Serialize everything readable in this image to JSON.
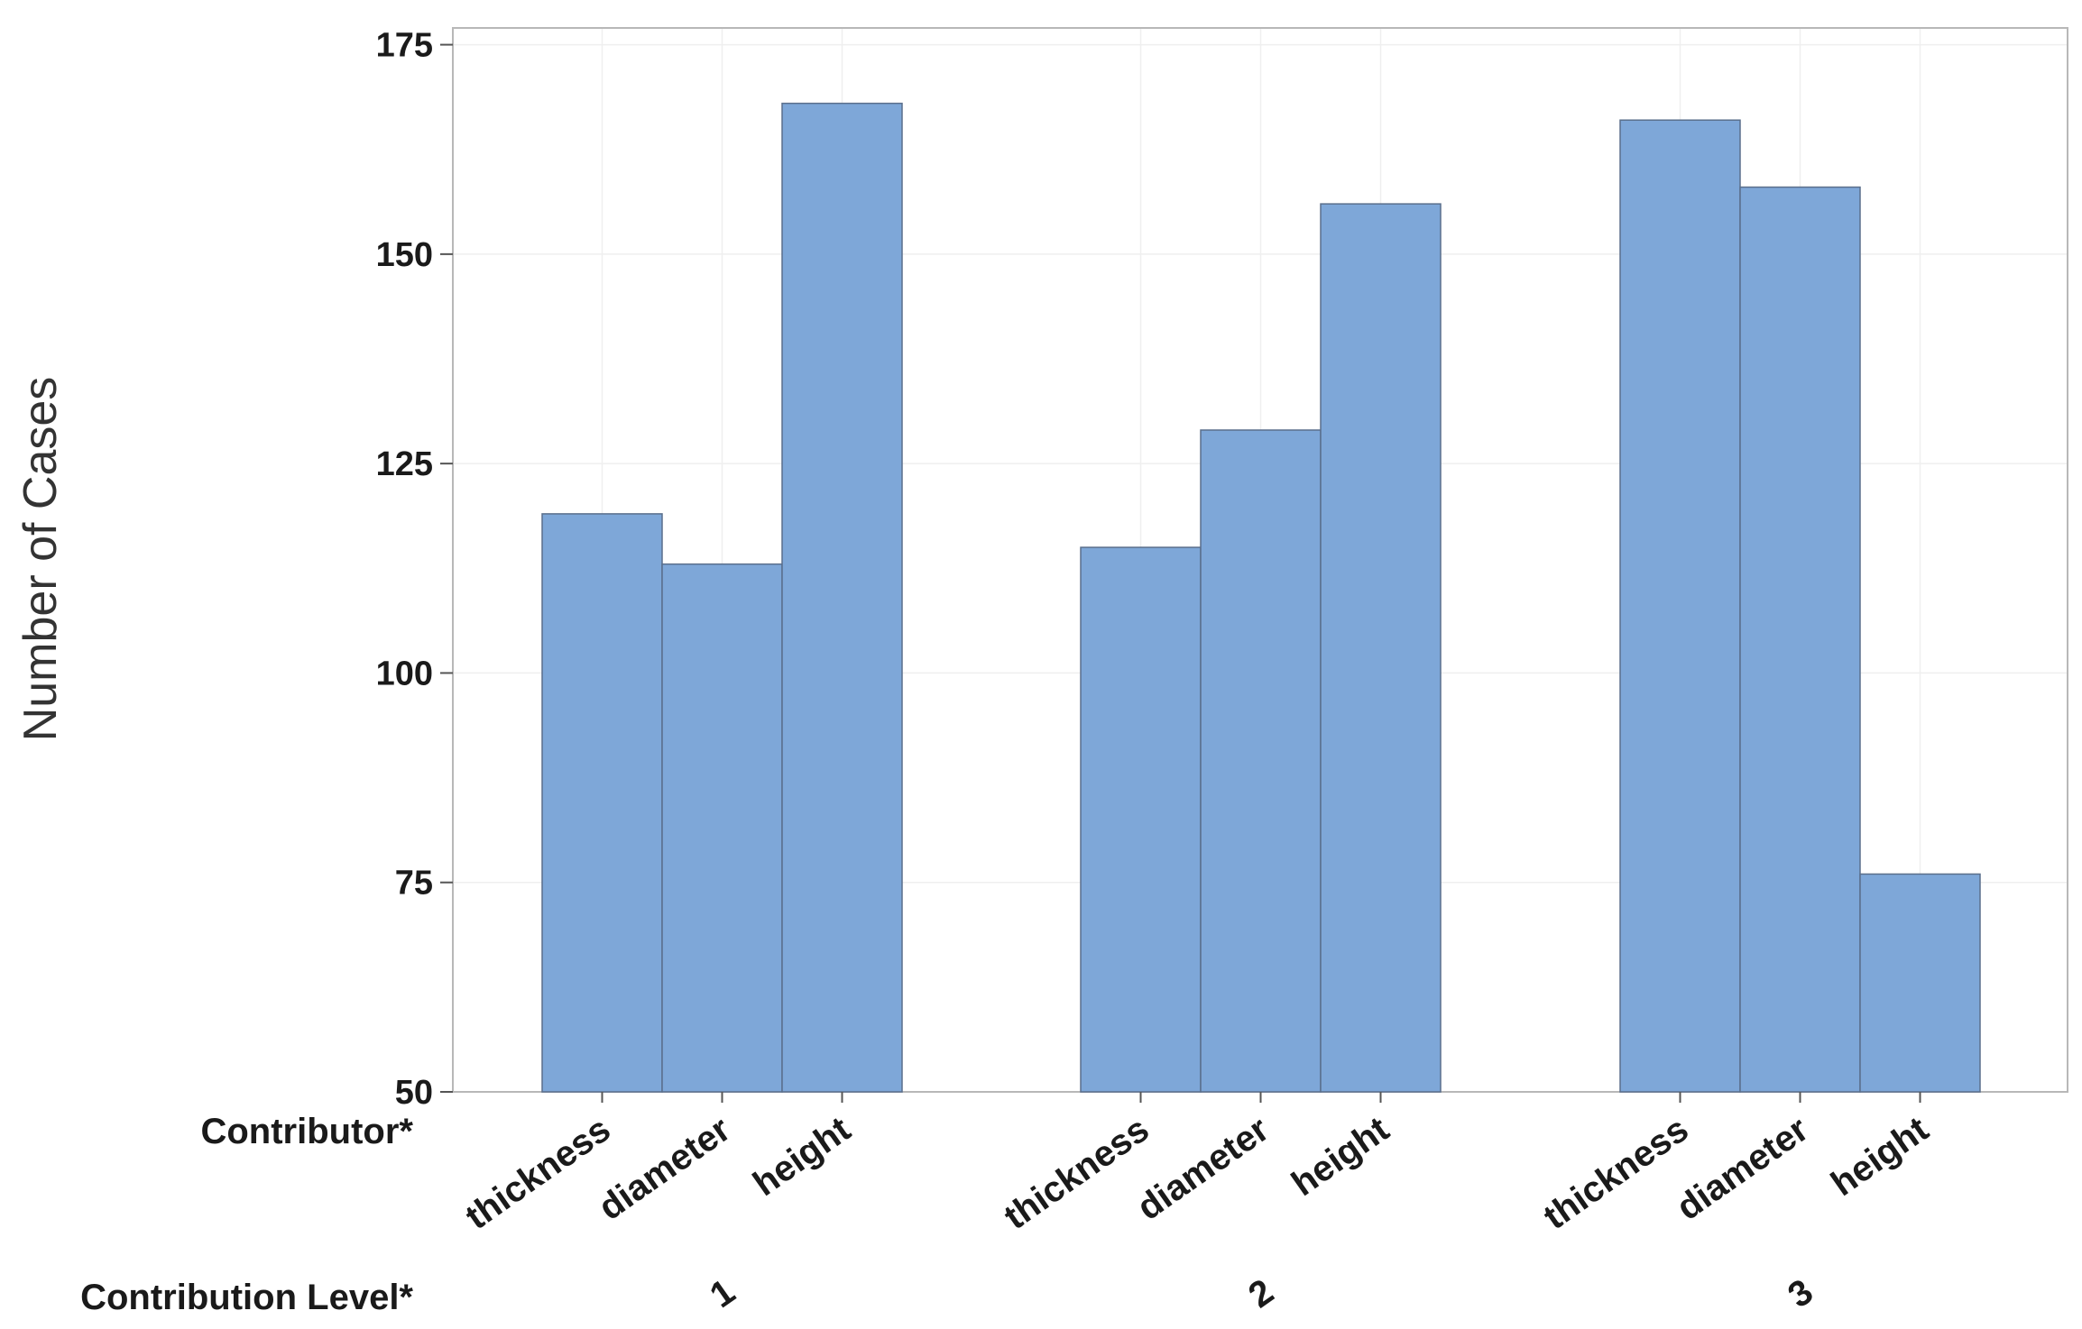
{
  "chart_data": {
    "type": "bar",
    "ylabel": "Number of Cases",
    "ylim": [
      50,
      177
    ],
    "yticks": [
      50,
      75,
      100,
      125,
      150,
      175
    ],
    "grid": true,
    "row_labels": {
      "inner": "Contributor*",
      "outer": "Contribution Level*"
    },
    "groups": [
      {
        "label": "1",
        "categories": [
          "thickness",
          "diameter",
          "height"
        ],
        "values": [
          119,
          113,
          168
        ]
      },
      {
        "label": "2",
        "categories": [
          "thickness",
          "diameter",
          "height"
        ],
        "values": [
          115,
          129,
          156
        ]
      },
      {
        "label": "3",
        "categories": [
          "thickness",
          "diameter",
          "height"
        ],
        "values": [
          166,
          158,
          76
        ]
      }
    ],
    "colors": {
      "bar": "#7ea7d8",
      "bar_edge": "#5a6f8c",
      "frame": "#b8b8b8",
      "grid": "#efefef"
    }
  }
}
